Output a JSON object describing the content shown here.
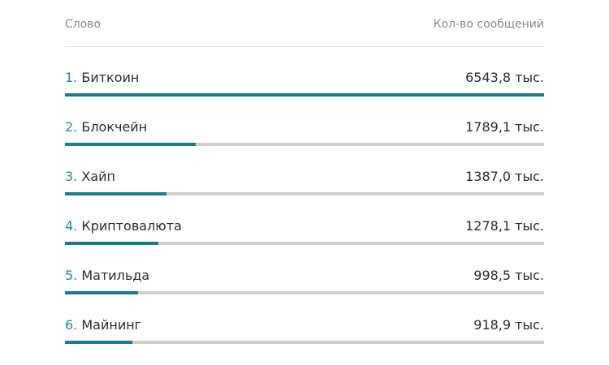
{
  "chart_data": {
    "type": "bar",
    "orientation": "horizontal",
    "column_headers": {
      "word": "Слово",
      "count": "Кол-во сообщений"
    },
    "unit_suffix": "тыс.",
    "bar_color": "#1a7c8b",
    "track_color": "#cfcfcf",
    "rank_color": "#1d8a98",
    "xlim": [
      0,
      6543.8
    ],
    "rows": [
      {
        "rank": "1.",
        "word": "Биткоин",
        "value": 6543.8,
        "value_label": "6543,8 тыс."
      },
      {
        "rank": "2.",
        "word": "Блокчейн",
        "value": 1789.1,
        "value_label": "1789,1 тыс."
      },
      {
        "rank": "3.",
        "word": "Хайп",
        "value": 1387.0,
        "value_label": "1387,0 тыс."
      },
      {
        "rank": "4.",
        "word": "Криптовалюта",
        "value": 1278.1,
        "value_label": "1278,1 тыс."
      },
      {
        "rank": "5.",
        "word": "Матильда",
        "value": 998.5,
        "value_label": "998,5 тыс."
      },
      {
        "rank": "6.",
        "word": "Майнинг",
        "value": 918.9,
        "value_label": "918,9 тыс."
      }
    ]
  }
}
